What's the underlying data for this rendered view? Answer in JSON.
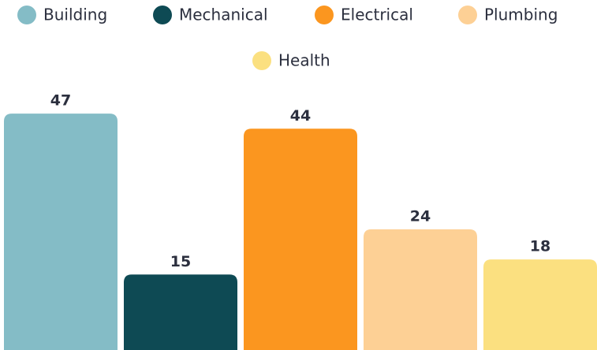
{
  "chart_data": {
    "type": "bar",
    "categories": [
      "Building",
      "Mechanical",
      "Electrical",
      "Plumbing",
      "Health"
    ],
    "values": [
      47,
      15,
      44,
      24,
      18
    ],
    "colors": [
      "#84bcc6",
      "#0e4a54",
      "#fb961f",
      "#fdd095",
      "#fbe080"
    ],
    "grid": false
  }
}
